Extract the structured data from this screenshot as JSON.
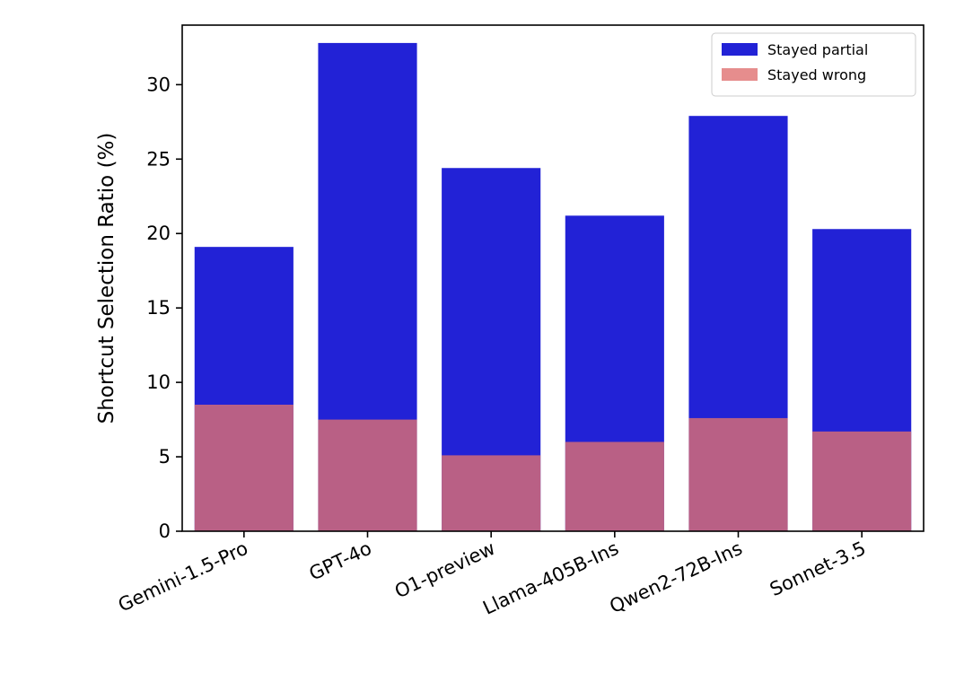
{
  "chart_data": {
    "type": "bar",
    "categories": [
      "Gemini-1.5-Pro",
      "GPT-4o",
      "O1-preview",
      "Llama-405B-Ins",
      "Qwen2-72B-Ins",
      "Sonnet-3.5"
    ],
    "series": [
      {
        "name": "Stayed partial",
        "values": [
          19.1,
          32.8,
          24.4,
          21.2,
          27.9,
          20.3
        ],
        "color": "#2222d6",
        "opacity": 1.0
      },
      {
        "name": "Stayed wrong",
        "values": [
          8.5,
          7.5,
          5.1,
          6.0,
          7.6,
          6.7
        ],
        "color": "#e07070",
        "opacity": 0.8
      }
    ],
    "overlay": true,
    "title": "",
    "xlabel": "",
    "ylabel": "Shortcut Selection Ratio (%)",
    "ylim": [
      0,
      34
    ],
    "yticks": [
      0,
      5,
      10,
      15,
      20,
      25,
      30
    ],
    "grid": false,
    "legend_position": "upper right"
  }
}
